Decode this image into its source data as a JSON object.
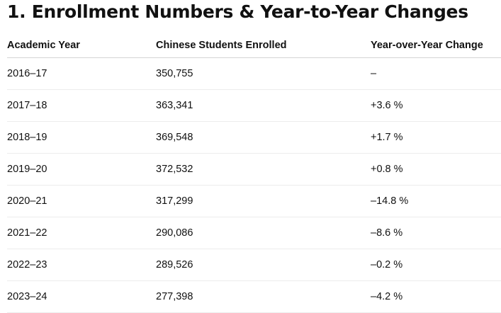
{
  "section": {
    "title": "1. Enrollment Numbers & Year-to-Year Changes"
  },
  "table": {
    "headers": [
      "Academic Year",
      "Chinese Students Enrolled",
      "Year-over-Year Change"
    ],
    "rows": [
      [
        "2016–17",
        "350,755",
        "–"
      ],
      [
        "2017–18",
        "363,341",
        "+3.6 %"
      ],
      [
        "2018–19",
        "369,548",
        "+1.7 %"
      ],
      [
        "2019–20",
        "372,532",
        "+0.8 %"
      ],
      [
        "2020–21",
        "317,299",
        "–14.8 %"
      ],
      [
        "2021–22",
        "290,086",
        "–8.6 %"
      ],
      [
        "2022–23",
        "289,526",
        "–0.2 %"
      ],
      [
        "2023–24",
        "277,398",
        "–4.2 %"
      ]
    ]
  }
}
